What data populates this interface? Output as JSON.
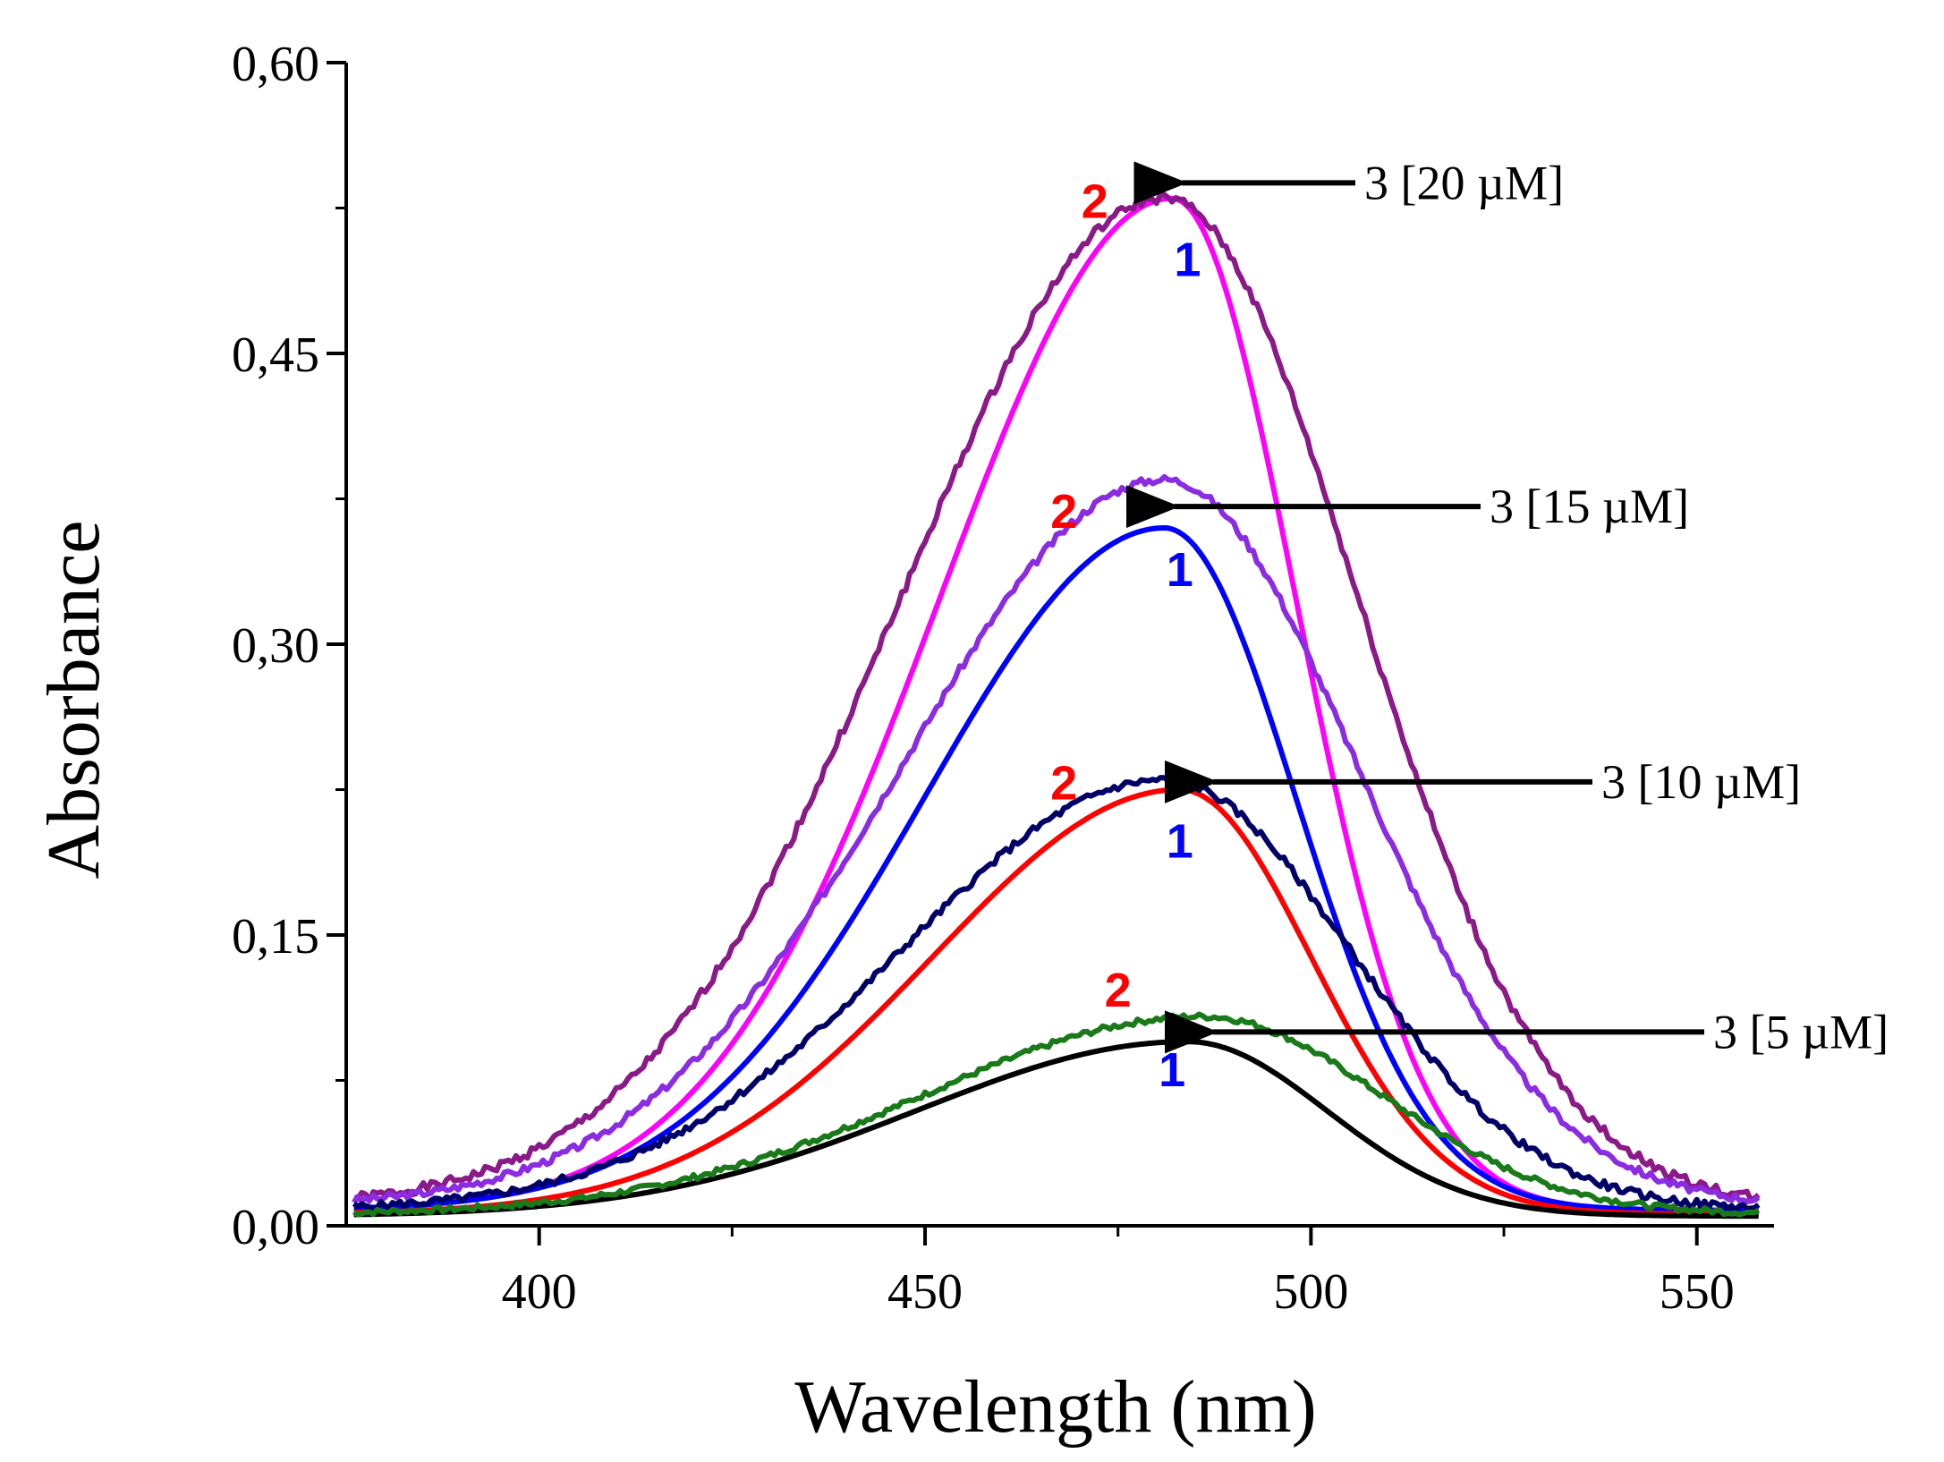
{
  "chart_data": {
    "type": "line",
    "title": "",
    "xlabel": "Wavelength (nm)",
    "ylabel": "Absorbance",
    "xlim": [
      375,
      560
    ],
    "ylim": [
      0,
      0.6
    ],
    "x_ticks": [
      400,
      450,
      500,
      550
    ],
    "x_tick_labels": [
      "400",
      "450",
      "500",
      "550"
    ],
    "y_ticks": [
      0,
      0.15,
      0.3,
      0.45,
      0.6
    ],
    "y_tick_labels": [
      "0,00",
      "0,15",
      "0,30",
      "0,45",
      "0,60"
    ],
    "grid": false,
    "series": [
      {
        "name": "1 [20 µM]",
        "curve": "1",
        "concentration": "20 µM",
        "color": "#ff00ff",
        "peak_x": 482,
        "peak_y": 0.53,
        "sigma_left": 30,
        "sigma_right": 16,
        "baseline": 0.008,
        "noise": 0
      },
      {
        "name": "2 [20 µM]",
        "curve": "2",
        "concentration": "20 µM",
        "color": "#8b1a89",
        "peak_x": 481,
        "peak_y": 0.53,
        "sigma_left": 34,
        "sigma_right": 25,
        "baseline": 0.01,
        "noise": 0.005
      },
      {
        "name": "1 [15 µM]",
        "curve": "1",
        "concentration": "15 µM",
        "color": "#0000ff",
        "peak_x": 481,
        "peak_y": 0.36,
        "sigma_left": 31,
        "sigma_right": 17,
        "baseline": 0.008,
        "noise": 0
      },
      {
        "name": "2 [15 µM]",
        "curve": "2",
        "concentration": "15 µM",
        "color": "#8b2be2",
        "peak_x": 481,
        "peak_y": 0.385,
        "sigma_left": 34,
        "sigma_right": 25,
        "baseline": 0.01,
        "noise": 0.004
      },
      {
        "name": "1 [10 µM]",
        "curve": "1",
        "concentration": "10 µM",
        "color": "#ff0000",
        "peak_x": 483,
        "peak_y": 0.225,
        "sigma_left": 32,
        "sigma_right": 17,
        "baseline": 0.006,
        "noise": 0
      },
      {
        "name": "2 [10 µM]",
        "curve": "2",
        "concentration": "10 µM",
        "color": "#000066",
        "peak_x": 481,
        "peak_y": 0.23,
        "sigma_left": 34,
        "sigma_right": 24,
        "baseline": 0.008,
        "noise": 0.004
      },
      {
        "name": "1 [5 µM]",
        "curve": "1",
        "concentration": "5 µM",
        "color": "#000000",
        "peak_x": 484,
        "peak_y": 0.095,
        "sigma_left": 35,
        "sigma_right": 18,
        "baseline": 0.005,
        "noise": 0
      },
      {
        "name": "2 [5 µM]",
        "curve": "2",
        "concentration": "5 µM",
        "color": "#1a7a1a",
        "peak_x": 486,
        "peak_y": 0.108,
        "sigma_left": 36,
        "sigma_right": 23,
        "baseline": 0.006,
        "noise": 0.003
      }
    ],
    "annotations": [
      {
        "text": "3 [20 µM]",
        "arrow_to": [
          481,
          0.538
        ]
      },
      {
        "text": "3 [15 µM]",
        "arrow_to": [
          480,
          0.371
        ]
      },
      {
        "text": "3 [10 µM]",
        "arrow_to": [
          485,
          0.229
        ]
      },
      {
        "text": "3 [5 µM]",
        "arrow_to": [
          485,
          0.1
        ]
      }
    ],
    "curve_labels": [
      {
        "text": "2",
        "color": "#ff0000",
        "x": 472,
        "y": 0.52
      },
      {
        "text": "1",
        "color": "#0000ff",
        "x": 484,
        "y": 0.49
      },
      {
        "text": "2",
        "color": "#ff0000",
        "x": 468,
        "y": 0.36
      },
      {
        "text": "1",
        "color": "#0000ff",
        "x": 483,
        "y": 0.33
      },
      {
        "text": "2",
        "color": "#ff0000",
        "x": 468,
        "y": 0.22
      },
      {
        "text": "1",
        "color": "#0000ff",
        "x": 483,
        "y": 0.19
      },
      {
        "text": "2",
        "color": "#ff0000",
        "x": 475,
        "y": 0.113
      },
      {
        "text": "1",
        "color": "#0000ff",
        "x": 482,
        "y": 0.072
      }
    ]
  }
}
